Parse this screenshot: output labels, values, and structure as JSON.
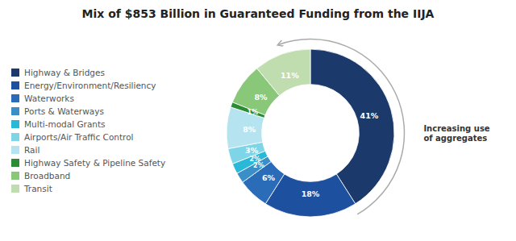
{
  "chart_data": {
    "type": "pie",
    "title": "Mix of $853 Billion in Guaranteed Funding from the IIJA",
    "categories": [
      "Highway & Bridges",
      "Energy/Environment/Resiliency",
      "Waterworks",
      "Ports & Waterways",
      "Multi-modal Grants",
      "Airports/Air Traffic Control",
      "Rail",
      "Highway Safety & Pipeline Safety",
      "Broadband",
      "Transit"
    ],
    "values": [
      41,
      18,
      6,
      2,
      2,
      3,
      8,
      1,
      8,
      11
    ],
    "value_labels": [
      "41%",
      "18%",
      "6%",
      "2%",
      "2%",
      "3%",
      "8%",
      "1%",
      "8%",
      "11%"
    ],
    "colors": [
      "#1b3a6b",
      "#1e50a0",
      "#2b6cb8",
      "#3a8fc8",
      "#29b8d8",
      "#7fd5e8",
      "#b5e3f0",
      "#2e8b35",
      "#88c878",
      "#c0ddb0"
    ],
    "data_labels": true,
    "legend": "left",
    "annotation": "Increasing use\nof aggregates"
  }
}
